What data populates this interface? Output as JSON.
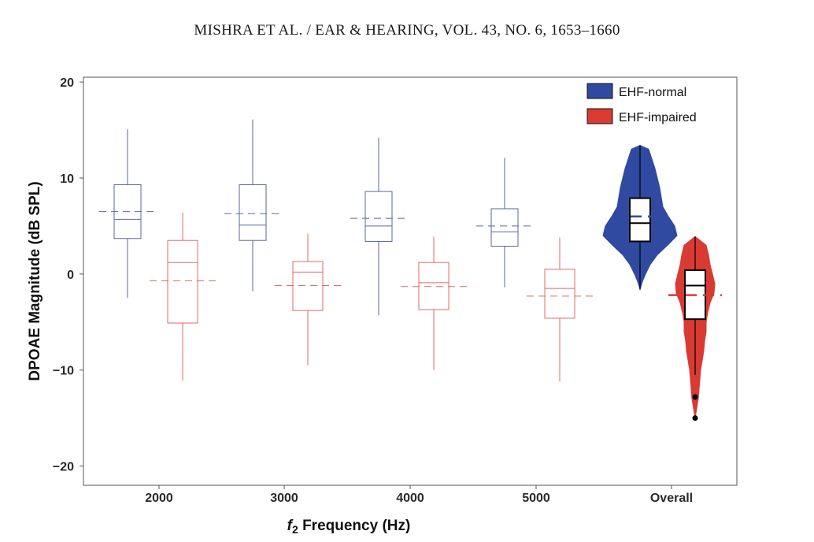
{
  "page": {
    "header": "MISHRA ET AL. / EAR & HEARING, VOL. 43, NO. 6, 1653–1660"
  },
  "chart_data": {
    "type": "box",
    "title": "",
    "xlabel_italic": "f",
    "xlabel_sub": "2",
    "xlabel_rest": " Frequency (Hz)",
    "ylabel": "DPOAE Magnitude (dB SPL)",
    "ylim": [
      -22,
      20.5
    ],
    "yticks": [
      -20,
      -10,
      0,
      10,
      20
    ],
    "categories": [
      "2000",
      "3000",
      "4000",
      "5000",
      "Overall"
    ],
    "legend": {
      "position": "top-right",
      "entries": [
        {
          "name": "EHF-normal",
          "color": "#2f4aa0"
        },
        {
          "name": "EHF-impaired",
          "color": "#d93a32"
        }
      ]
    },
    "series": [
      {
        "name": "EHF-normal",
        "color": "#5b63a8",
        "boxes": [
          {
            "category": "2000",
            "min": -2.5,
            "q1": 3.7,
            "median": 5.7,
            "mean": 6.5,
            "q3": 9.3,
            "max": 15.1
          },
          {
            "category": "3000",
            "min": -1.8,
            "q1": 3.5,
            "median": 5.1,
            "mean": 6.3,
            "q3": 9.3,
            "max": 16.1
          },
          {
            "category": "4000",
            "min": -4.3,
            "q1": 3.4,
            "median": 5.0,
            "mean": 5.8,
            "q3": 8.6,
            "max": 14.2
          },
          {
            "category": "5000",
            "min": -1.4,
            "q1": 2.9,
            "median": 4.4,
            "mean": 5.0,
            "q3": 6.8,
            "max": 12.1
          },
          {
            "category": "Overall",
            "min": -1.6,
            "q1": 3.4,
            "median": 5.3,
            "mean": 6.0,
            "q3": 7.9,
            "max": 13.4
          }
        ]
      },
      {
        "name": "EHF-impaired",
        "color": "#e06a66",
        "boxes": [
          {
            "category": "2000",
            "min": -11.1,
            "q1": -5.1,
            "median": 1.2,
            "mean": -0.7,
            "q3": 3.5,
            "max": 6.4
          },
          {
            "category": "3000",
            "min": -9.5,
            "q1": -3.8,
            "median": 0.2,
            "mean": -1.2,
            "q3": 1.3,
            "max": 4.2
          },
          {
            "category": "4000",
            "min": -10.0,
            "q1": -3.7,
            "median": -0.9,
            "mean": -1.3,
            "q3": 1.2,
            "max": 3.9
          },
          {
            "category": "5000",
            "min": -11.2,
            "q1": -4.6,
            "median": -1.5,
            "mean": -2.3,
            "q3": 0.5,
            "max": 3.8
          },
          {
            "category": "Overall",
            "min": -10.5,
            "q1": -4.7,
            "median": -1.2,
            "mean": -2.2,
            "q3": 0.4,
            "max": 3.9,
            "outliers": [
              -12.8,
              -15.0
            ]
          }
        ]
      }
    ]
  }
}
